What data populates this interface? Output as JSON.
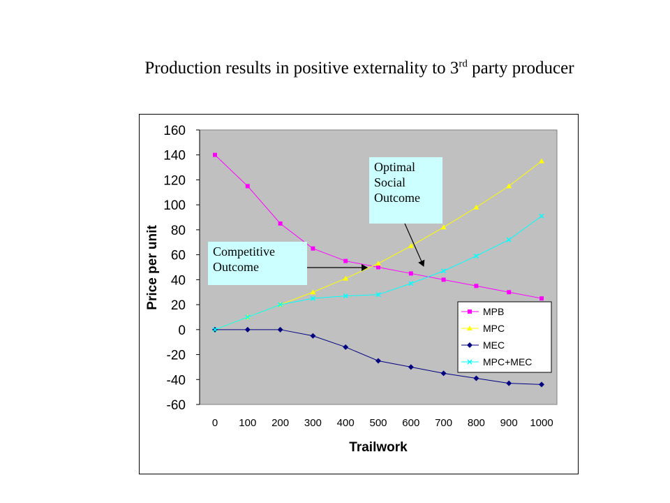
{
  "slide": {
    "title_main": "Production results in positive externality to 3",
    "title_sup": "rd",
    "title_end": " party producer"
  },
  "callouts": {
    "optimal": [
      "Optimal",
      "Social",
      "Outcome"
    ],
    "competitive": [
      "Competitive",
      "Outcome"
    ]
  },
  "chart_data": {
    "type": "line",
    "xlabel": "Trailwork",
    "ylabel": "Price per unit",
    "x": [
      0,
      100,
      200,
      300,
      400,
      500,
      600,
      700,
      800,
      900,
      1000
    ],
    "ylim": [
      -60,
      160
    ],
    "yticks": [
      160,
      140,
      120,
      100,
      80,
      60,
      40,
      20,
      0,
      -20,
      -40,
      -60
    ],
    "grid": false,
    "plot_background": "#c0c0c0",
    "legend_position": "bottom-right",
    "series": [
      {
        "name": "MPB",
        "color": "#ff00ff",
        "marker": "square",
        "values": [
          140,
          115,
          85,
          65,
          55,
          50,
          45,
          40,
          35,
          30,
          25
        ]
      },
      {
        "name": "MPC",
        "color": "#ffff00",
        "marker": "triangle",
        "values": [
          0,
          10,
          20,
          30,
          41,
          53,
          67,
          82,
          98,
          115,
          135
        ]
      },
      {
        "name": "MEC",
        "color": "#000080",
        "marker": "diamond",
        "values": [
          0,
          0,
          0,
          -5,
          -14,
          -25,
          -30,
          -35,
          -39,
          -43,
          -44
        ]
      },
      {
        "name": "MPC+MEC",
        "color": "#00ffff",
        "marker": "x",
        "values": [
          0,
          10,
          20,
          25,
          27,
          28,
          37,
          47,
          59,
          72,
          91
        ]
      }
    ]
  }
}
